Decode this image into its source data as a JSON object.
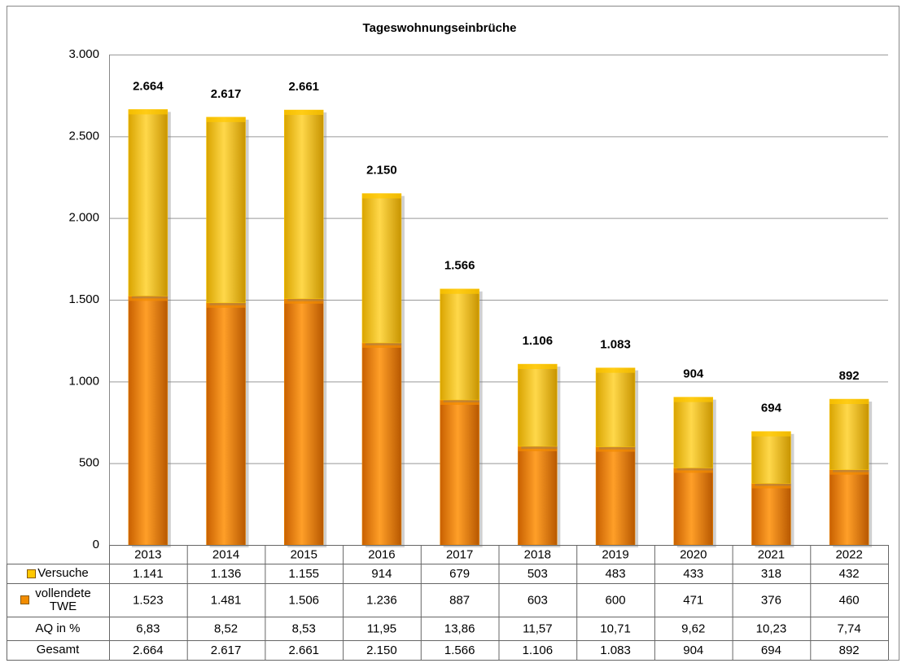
{
  "chart_data": {
    "type": "bar",
    "stacked": true,
    "title": "Tageswohnungseinbrüche",
    "categories": [
      "2013",
      "2014",
      "2015",
      "2016",
      "2017",
      "2018",
      "2019",
      "2020",
      "2021",
      "2022"
    ],
    "series": [
      {
        "name": "Versuche",
        "color": "#ffc800",
        "values": [
          1141,
          1136,
          1155,
          914,
          679,
          503,
          483,
          433,
          318,
          432
        ],
        "value_labels": [
          "1.141",
          "1.136",
          "1.155",
          "914",
          "679",
          "503",
          "483",
          "433",
          "318",
          "432"
        ]
      },
      {
        "name": "vollendete TWE",
        "color": "#f28c00",
        "values": [
          1523,
          1481,
          1506,
          1236,
          887,
          603,
          600,
          471,
          376,
          460
        ],
        "value_labels": [
          "1.523",
          "1.481",
          "1.506",
          "1.236",
          "887",
          "603",
          "600",
          "471",
          "376",
          "460"
        ]
      }
    ],
    "rate": {
      "name": "AQ in %",
      "values": [
        6.83,
        8.52,
        8.53,
        11.95,
        13.86,
        11.57,
        10.71,
        9.62,
        10.23,
        7.74
      ],
      "value_labels": [
        "6,83",
        "8,52",
        "8,53",
        "11,95",
        "13,86",
        "11,57",
        "10,71",
        "9,62",
        "10,23",
        "7,74"
      ]
    },
    "totals": {
      "name": "Gesamt",
      "values": [
        2664,
        2617,
        2661,
        2150,
        1566,
        1106,
        1083,
        904,
        694,
        892
      ],
      "value_labels": [
        "2.664",
        "2.617",
        "2.661",
        "2.150",
        "1.566",
        "1.106",
        "1.083",
        "904",
        "694",
        "892"
      ]
    },
    "ylim": [
      0,
      3000
    ],
    "yticks": [
      0,
      500,
      {
        "value": 1000,
        "label": "1.000"
      },
      {
        "value": 1500,
        "label": "1.500"
      },
      {
        "value": 2000,
        "label": "2.000"
      },
      {
        "value": 2500,
        "label": "2.500"
      },
      {
        "value": 3000,
        "label": "3.000"
      }
    ],
    "grid": true
  }
}
